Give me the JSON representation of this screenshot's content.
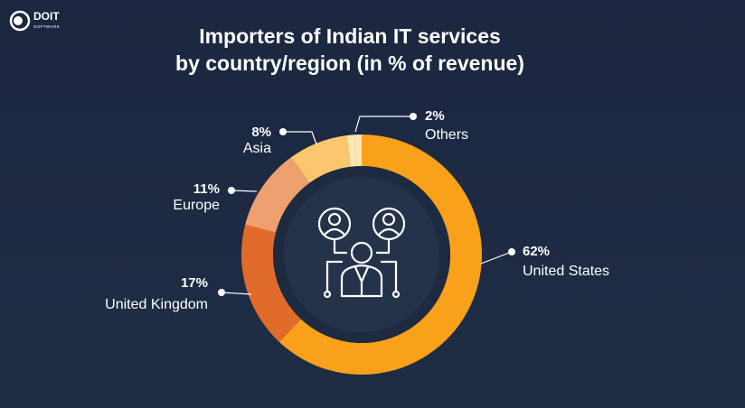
{
  "logo": {
    "name": "DOIT",
    "tagline": "SOFTWARE"
  },
  "chart_data": {
    "type": "pie",
    "donut": true,
    "title": [
      "Importers of Indian IT services",
      "by country/region (in % of revenue)"
    ],
    "categories": [
      "United States",
      "United Kingdom",
      "Europe",
      "Asia",
      "Others"
    ],
    "values": [
      62,
      17,
      11,
      8,
      2
    ],
    "value_labels": [
      "62%",
      "17%",
      "11%",
      "8%",
      "2%"
    ],
    "colors": [
      "#f9a11b",
      "#e16b2b",
      "#ee9f6e",
      "#fbc66d",
      "#fde4b2"
    ]
  }
}
